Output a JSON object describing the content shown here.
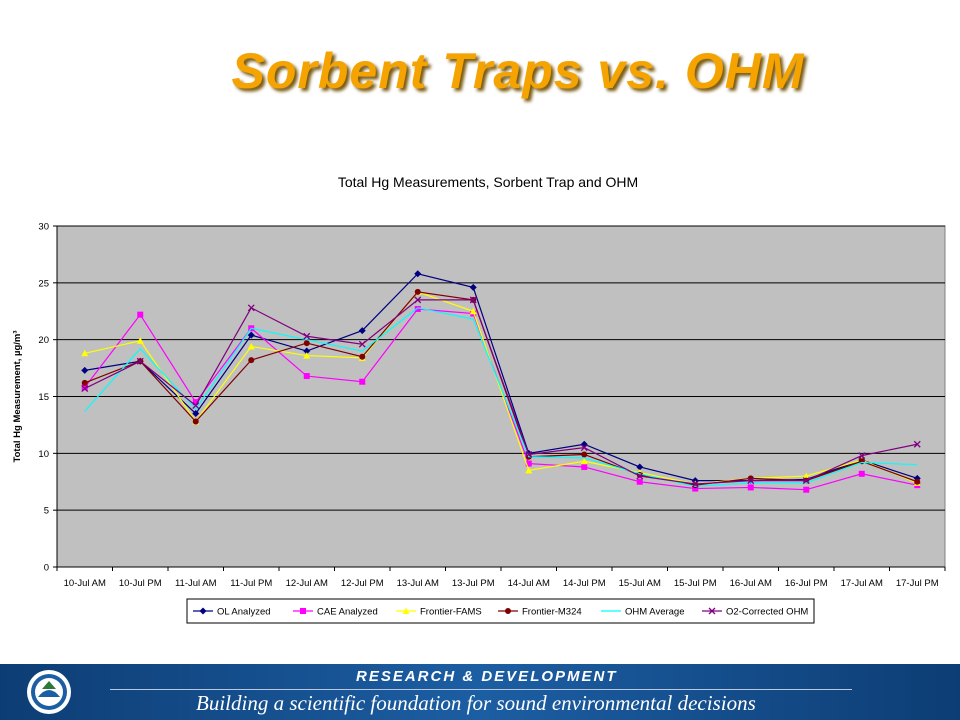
{
  "slide": {
    "title": "Sorbent Traps vs. OHM"
  },
  "footer": {
    "heading": "RESEARCH & DEVELOPMENT",
    "tagline": "Building a scientific foundation for sound environmental decisions"
  },
  "chart_data": {
    "type": "line",
    "title": "Total Hg Measurements, Sorbent Trap and OHM",
    "xlabel": "",
    "ylabel": "Total Hg Measurement,  µg/m³",
    "ylim": [
      0,
      30
    ],
    "yticks": [
      0,
      5,
      10,
      15,
      20,
      25,
      30
    ],
    "grid": true,
    "plot_background": "#c0c0c0",
    "legend_position": "bottom",
    "categories": [
      "10-Jul AM",
      "10-Jul PM",
      "11-Jul AM",
      "11-Jul PM",
      "12-Jul AM",
      "12-Jul PM",
      "13-Jul AM",
      "13-Jul PM",
      "14-Jul AM",
      "14-Jul PM",
      "15-Jul AM",
      "15-Jul PM",
      "16-Jul AM",
      "16-Jul PM",
      "17-Jul AM",
      "17-Jul PM"
    ],
    "series": [
      {
        "name": "OL Analyzed",
        "color": "#000080",
        "marker": "diamond",
        "values": [
          17.3,
          18.1,
          13.5,
          20.4,
          19.0,
          20.8,
          25.8,
          24.6,
          10.0,
          10.8,
          8.8,
          7.6,
          7.6,
          7.7,
          9.4,
          7.8
        ]
      },
      {
        "name": "CAE Analyzed",
        "color": "#ff00ff",
        "marker": "square",
        "values": [
          15.8,
          22.2,
          14.5,
          21.0,
          16.8,
          16.3,
          22.7,
          22.3,
          9.1,
          8.8,
          7.5,
          6.9,
          7.0,
          6.8,
          8.2,
          7.2
        ]
      },
      {
        "name": "Frontier-FAMS",
        "color": "#ffff00",
        "marker": "triangle",
        "values": [
          18.8,
          19.9,
          12.8,
          19.4,
          18.6,
          18.4,
          24.2,
          22.5,
          8.5,
          9.3,
          8.3,
          7.3,
          7.8,
          8.0,
          9.4,
          7.4
        ]
      },
      {
        "name": "Frontier-M324",
        "color": "#800000",
        "marker": "circle",
        "values": [
          16.2,
          18.1,
          12.8,
          18.2,
          19.7,
          18.5,
          24.2,
          23.5,
          9.7,
          9.9,
          8.1,
          7.2,
          7.8,
          7.6,
          9.3,
          7.5
        ]
      },
      {
        "name": "OHM Average",
        "color": "#00ffff",
        "marker": "none",
        "values": [
          13.7,
          19.2,
          13.9,
          21.0,
          20.0,
          19.0,
          22.8,
          21.8,
          9.7,
          9.6,
          8.2,
          7.1,
          7.4,
          7.4,
          9.2,
          9.0
        ]
      },
      {
        "name": "O2-Corrected OHM",
        "color": "#800080",
        "marker": "x",
        "values": [
          15.7,
          18.1,
          14.2,
          22.8,
          20.3,
          19.6,
          23.5,
          23.5,
          9.9,
          10.5,
          8.0,
          7.3,
          7.6,
          7.6,
          9.8,
          10.8
        ]
      }
    ]
  }
}
